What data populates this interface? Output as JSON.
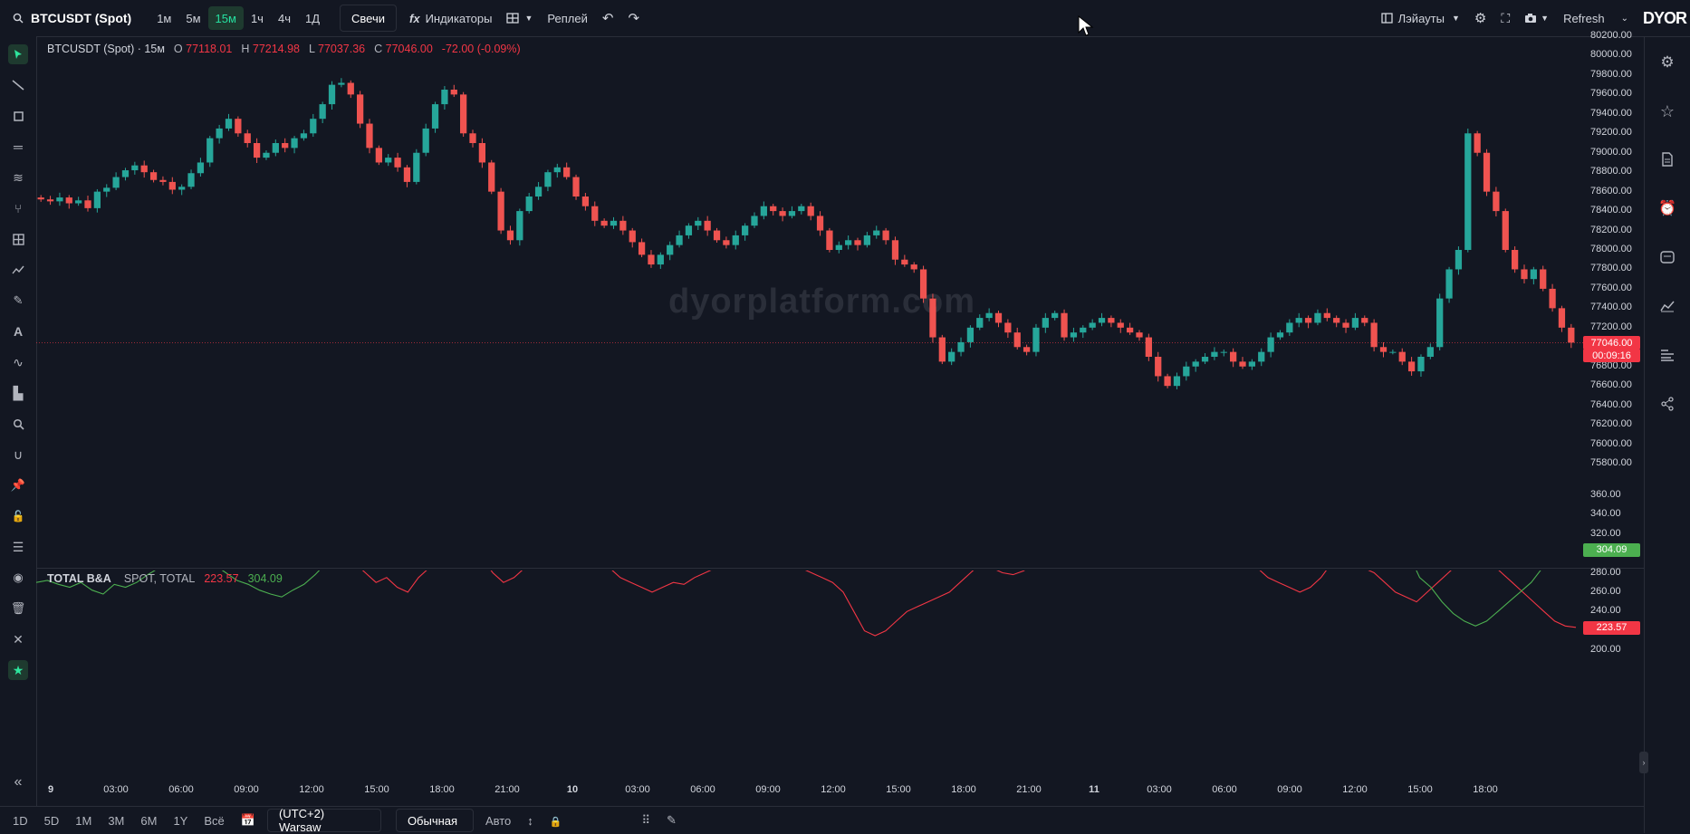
{
  "topbar": {
    "symbol": "BTCUSDT (Spot)",
    "timeframes": [
      "1м",
      "5м",
      "15м",
      "1ч",
      "4ч",
      "1Д"
    ],
    "active_timeframe": "15м",
    "chart_type": "Свечи",
    "indicators": "Индикаторы",
    "replay": "Реплей",
    "layouts": "Лэйауты",
    "refresh": "Refresh",
    "logo": "DYOR"
  },
  "legend": {
    "title": "BTCUSDT (Spot) · 15м",
    "o_label": "O",
    "o": "77118.01",
    "h_label": "H",
    "h": "77214.98",
    "l_label": "L",
    "l": "77037.36",
    "c_label": "C",
    "c": "77046.00",
    "change": "-72.00 (-0.09%)"
  },
  "watermark": "dyorplatform.com",
  "indicator_legend": {
    "name": "TOTAL B&A",
    "params": "SPOT, TOTAL",
    "val_red": "223.57",
    "val_green": "304.09"
  },
  "price_axis": [
    "80200.00",
    "80000.00",
    "79800.00",
    "79600.00",
    "79400.00",
    "79200.00",
    "79000.00",
    "78800.00",
    "78600.00",
    "78400.00",
    "78200.00",
    "78000.00",
    "77800.00",
    "77600.00",
    "77400.00",
    "77200.00",
    "76800.00",
    "76600.00",
    "76400.00",
    "76200.00",
    "76000.00",
    "75800.00"
  ],
  "price_tag": "77046.00",
  "countdown_tag": "00:09:16",
  "indicator_axis": [
    "360.00",
    "340.00",
    "320.00",
    "300.00",
    "280.00",
    "260.00",
    "240.00",
    "220.00",
    "200.00"
  ],
  "indicator_tag_green": "304.09",
  "indicator_tag_red": "223.57",
  "time_axis": [
    "9",
    "03:00",
    "06:00",
    "09:00",
    "12:00",
    "15:00",
    "18:00",
    "21:00",
    "10",
    "03:00",
    "06:00",
    "09:00",
    "12:00",
    "15:00",
    "18:00",
    "21:00",
    "11",
    "03:00",
    "06:00",
    "09:00",
    "12:00",
    "15:00",
    "18:00"
  ],
  "bottombar": {
    "ranges": [
      "1D",
      "5D",
      "1M",
      "3M",
      "6M",
      "1Y",
      "Всё"
    ],
    "timezone": "(UTC+2) Warsaw",
    "scale_mode": "Обычная",
    "auto": "Авто"
  },
  "colors": {
    "up": "#26a69a",
    "down": "#ef5350",
    "bg": "#131722",
    "accent": "#2ee59d"
  },
  "chart_data": [
    {
      "type": "candlestick",
      "title": "BTCUSDT (Spot) · 15м",
      "ylim": [
        75800,
        80200
      ],
      "series": [
        {
          "values": [
            78520,
            78500,
            78540,
            78480,
            78510,
            78430,
            78600,
            78640,
            78750,
            78820,
            78870,
            78800,
            78720,
            78700,
            78620,
            78650,
            78790,
            78900,
            79150,
            79250,
            79350,
            79200,
            79100,
            78950,
            79000,
            79100,
            79050,
            79150,
            79200,
            79350,
            79500,
            79700,
            79720,
            79600,
            79300,
            79050,
            78900,
            78950,
            78850,
            78700,
            79000,
            79250,
            79500,
            79650,
            79600,
            79200,
            79100,
            78900,
            78600,
            78200,
            78100,
            78400,
            78550,
            78650,
            78800,
            78850,
            78750,
            78550,
            78450,
            78300,
            78250,
            78300,
            78200,
            78080,
            77950,
            77850,
            77950,
            78050,
            78150,
            78250,
            78300,
            78200,
            78100,
            78050,
            78150,
            78250,
            78350,
            78450,
            78400,
            78350,
            78400,
            78450,
            78350,
            78200,
            78000,
            78050,
            78100,
            78050,
            78150,
            78200,
            78100,
            77900,
            77850,
            77800,
            77500,
            77100,
            76850,
            76950,
            77050,
            77200,
            77300,
            77350,
            77250,
            77150,
            77000,
            76950,
            77200,
            77300,
            77350,
            77100,
            77150,
            77200,
            77250,
            77300,
            77250,
            77200,
            77150,
            77100,
            76900,
            76700,
            76600,
            76700,
            76800,
            76850,
            76900,
            76950,
            76950,
            76850,
            76800,
            76850,
            76950,
            77100,
            77150,
            77250,
            77300,
            77250,
            77350,
            77300,
            77250,
            77200,
            77300,
            77250,
            77000,
            76950,
            76950,
            76850,
            76750,
            76900,
            77000,
            77500,
            77800,
            78000,
            79200,
            79000,
            78600,
            78400,
            78000,
            77800,
            77700,
            77800,
            77600,
            77400,
            77200,
            77046
          ]
        }
      ]
    },
    {
      "type": "line",
      "title": "TOTAL B&A",
      "ylim": [
        200,
        360
      ],
      "series": [
        {
          "name": "SPOT",
          "color": "#f23645",
          "values": [
            300,
            295,
            305,
            300,
            310,
            305,
            315,
            310,
            320,
            325,
            318,
            322,
            315,
            320,
            310,
            318,
            312,
            322,
            320,
            315,
            312,
            325,
            320,
            310,
            305,
            300,
            315,
            320,
            325,
            310,
            290,
            280,
            270,
            275,
            265,
            260,
            275,
            285,
            300,
            310,
            305,
            300,
            295,
            280,
            270,
            275,
            285,
            290,
            295,
            300,
            305,
            310,
            300,
            290,
            285,
            275,
            270,
            265,
            260,
            265,
            270,
            268,
            275,
            280,
            285,
            290,
            295,
            300,
            305,
            310,
            300,
            290,
            285,
            280,
            275,
            270,
            260,
            240,
            220,
            215,
            220,
            230,
            240,
            245,
            250,
            255,
            260,
            270,
            280,
            290,
            285,
            280,
            278,
            282,
            290,
            295,
            300,
            305,
            302,
            300,
            298,
            295,
            290,
            292,
            296,
            300,
            305,
            300,
            295,
            290,
            288,
            290,
            295,
            300,
            295,
            285,
            275,
            270,
            265,
            260,
            265,
            275,
            290,
            300,
            295,
            285,
            280,
            270,
            260,
            255,
            250,
            260,
            270,
            280,
            290,
            300,
            298,
            290,
            280,
            270,
            260,
            250,
            240,
            230,
            225,
            223.57
          ]
        },
        {
          "name": "TOTAL",
          "color": "#4caf50",
          "values": [
            270,
            272,
            268,
            265,
            270,
            262,
            258,
            268,
            265,
            270,
            278,
            285,
            290,
            295,
            300,
            292,
            288,
            280,
            272,
            268,
            262,
            258,
            255,
            262,
            268,
            278,
            290,
            300,
            305,
            310,
            312,
            315,
            322,
            318,
            315,
            320,
            312,
            305,
            300,
            298,
            302,
            305,
            310,
            308,
            312,
            318,
            322,
            330,
            335,
            340,
            345,
            350,
            348,
            342,
            338,
            332,
            325,
            320,
            318,
            322,
            328,
            332,
            335,
            338,
            340,
            335,
            330,
            325,
            322,
            318,
            312,
            305,
            300,
            310,
            325,
            335,
            340,
            345,
            350,
            355,
            360,
            352,
            345,
            340,
            335,
            330,
            325,
            320,
            310,
            305,
            300,
            298,
            302,
            305,
            310,
            305,
            300,
            298,
            302,
            305,
            310,
            312,
            308,
            305,
            300,
            302,
            305,
            300,
            298,
            295,
            298,
            305,
            310,
            315,
            320,
            325,
            330,
            335,
            340,
            345,
            350,
            360,
            340,
            300,
            275,
            265,
            250,
            238,
            230,
            225,
            230,
            240,
            250,
            260,
            270,
            285,
            295,
            300,
            304.09
          ]
        }
      ]
    }
  ]
}
